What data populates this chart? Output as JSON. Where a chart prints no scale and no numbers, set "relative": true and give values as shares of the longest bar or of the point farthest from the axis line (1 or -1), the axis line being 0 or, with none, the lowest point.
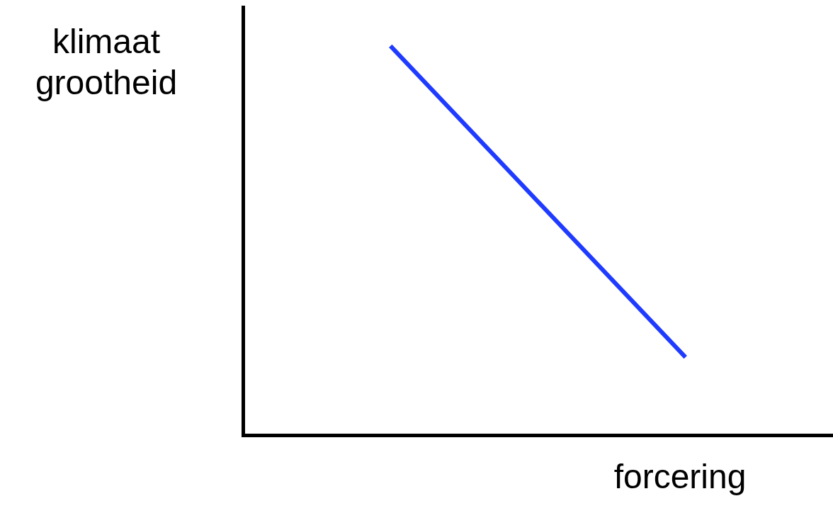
{
  "chart_data": {
    "type": "line",
    "relative": true,
    "xlabel": "forcering",
    "ylabel": "klimaat grootheid",
    "categories": [
      null,
      null
    ],
    "series": [
      {
        "color": "#1f3bff",
        "values": [
          1,
          0.2
        ]
      }
    ],
    "grid": false,
    "legend": false,
    "marker": "none",
    "line_style": "solid"
  }
}
